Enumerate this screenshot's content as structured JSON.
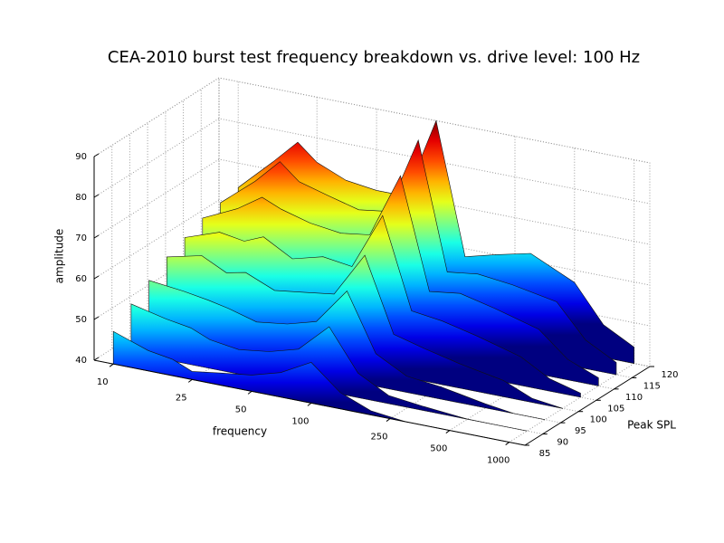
{
  "chart_data": {
    "type": "waterfall3d",
    "title": "CEA-2010 burst test frequency breakdown vs. drive level: 100 Hz",
    "x_label": "frequency",
    "y_label": "Peak SPL",
    "z_label": "amplitude",
    "x_log": true,
    "colormap": "jet",
    "grid": true,
    "xlim": [
      8,
      1200
    ],
    "xticks": [
      10,
      25,
      50,
      100,
      250,
      500,
      1000
    ],
    "ylim": [
      85,
      120
    ],
    "yticks": [
      85,
      90,
      95,
      100,
      105,
      110,
      115,
      120
    ],
    "zlim": [
      40,
      90
    ],
    "zticks": [
      40,
      50,
      60,
      70,
      80,
      90
    ],
    "x": [
      10,
      15,
      20,
      25,
      35,
      50,
      70,
      100,
      140,
      200,
      300,
      500,
      700,
      1000
    ],
    "series": [
      {
        "name": "85",
        "level": 85,
        "values": [
          48,
          45,
          44,
          42,
          43,
          44,
          46,
          50,
          44,
          41,
          40,
          40,
          40,
          40
        ]
      },
      {
        "name": "90",
        "level": 90,
        "values": [
          52,
          50,
          49,
          47,
          46,
          47,
          49,
          56,
          46,
          42,
          41,
          40,
          40,
          40
        ]
      },
      {
        "name": "95",
        "level": 95,
        "values": [
          55,
          54,
          53,
          52,
          50,
          51,
          53,
          62,
          48,
          44,
          43,
          41,
          40,
          40
        ]
      },
      {
        "name": "100",
        "level": 100,
        "values": [
          58,
          60,
          57,
          58,
          55,
          56,
          57,
          68,
          50,
          48,
          46,
          44,
          41,
          40
        ]
      },
      {
        "name": "105",
        "level": 105,
        "values": [
          60,
          63,
          62,
          64,
          60,
          62,
          61,
          75,
          53,
          52,
          50,
          47,
          43,
          41
        ]
      },
      {
        "name": "110",
        "level": 110,
        "values": [
          62,
          66,
          70,
          68,
          66,
          65,
          66,
          82,
          55,
          56,
          54,
          51,
          45,
          42
        ]
      },
      {
        "name": "115",
        "level": 115,
        "values": [
          63,
          70,
          76,
          72,
          70,
          68,
          69,
          88,
          57,
          58,
          57,
          55,
          47,
          43
        ]
      },
      {
        "name": "120",
        "level": 120,
        "values": [
          64,
          72,
          78,
          74,
          71,
          70,
          70,
          90,
          58,
          60,
          62,
          57,
          48,
          44
        ]
      }
    ]
  }
}
